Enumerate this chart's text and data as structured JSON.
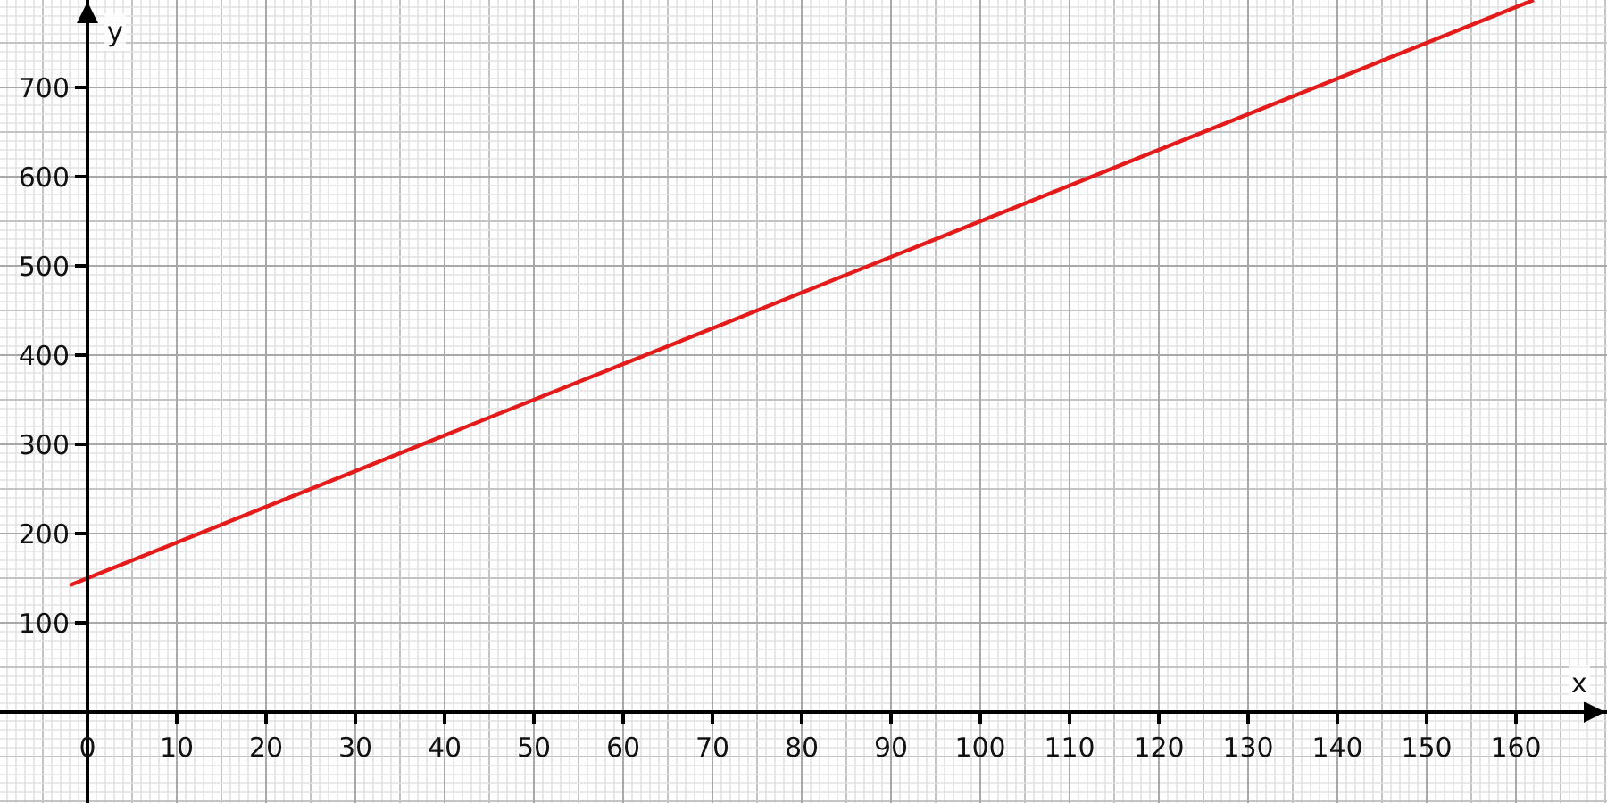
{
  "chart_data": {
    "type": "line",
    "xlabel": "x",
    "ylabel": "y",
    "series": [
      {
        "color": "#e31b1b",
        "x": [
          -2,
          162
        ],
        "values": [
          142,
          798
        ]
      }
    ],
    "xlim": [
      -9.8,
      170.2
    ],
    "ylim": [
      -102,
      798
    ],
    "xticks": [
      0,
      10,
      20,
      30,
      40,
      50,
      60,
      70,
      80,
      90,
      100,
      110,
      120,
      130,
      140,
      150,
      160
    ],
    "yticks": [
      100,
      200,
      300,
      400,
      500,
      600,
      700
    ],
    "grid": true,
    "marker": "none",
    "line_style": "solid"
  }
}
